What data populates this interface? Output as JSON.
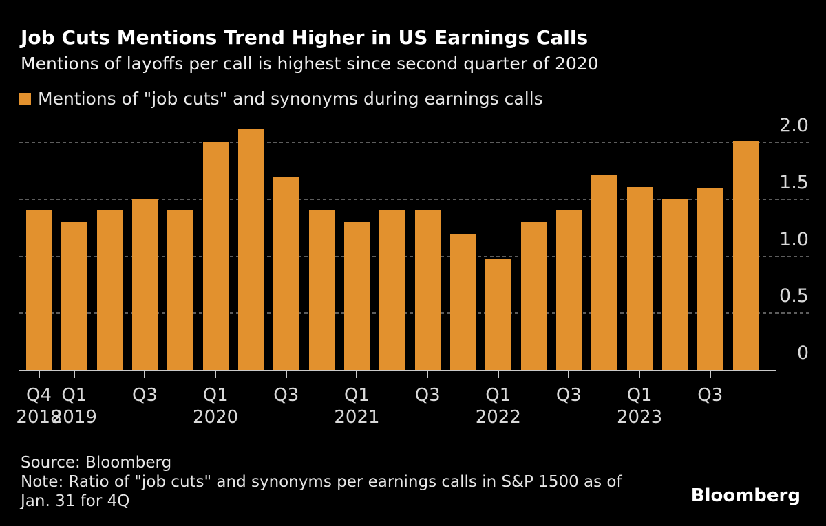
{
  "header": {
    "title": "Job Cuts Mentions Trend Higher in US Earnings Calls",
    "subtitle": "Mentions of layoffs per call is highest since second quarter of 2020"
  },
  "legend": {
    "label": "Mentions of \"job cuts\" and synonyms during earnings calls",
    "swatch_color": "#E2912E"
  },
  "footer": {
    "source": "Source: Bloomberg",
    "note_line1": "Note: Ratio of \"job cuts\" and synonyms per earnings calls in S&P 1500 as of",
    "note_line2": "Jan. 31 for 4Q",
    "brand": "Bloomberg"
  },
  "chart_data": {
    "type": "bar",
    "title": "Job Cuts Mentions Trend Higher in US Earnings Calls",
    "subtitle": "Mentions of layoffs per call is highest since second quarter of 2020",
    "legend_entries": [
      "Mentions of \"job cuts\" and synonyms during earnings calls"
    ],
    "bar_color": "#E2912E",
    "categories": [
      "Q4 2018",
      "Q1 2019",
      "Q2 2019",
      "Q3 2019",
      "Q4 2019",
      "Q1 2020",
      "Q2 2020",
      "Q3 2020",
      "Q4 2020",
      "Q1 2021",
      "Q2 2021",
      "Q3 2021",
      "Q4 2021",
      "Q1 2022",
      "Q2 2022",
      "Q3 2022",
      "Q4 2022",
      "Q1 2023",
      "Q2 2023",
      "Q3 2023",
      "Q4 2023"
    ],
    "values": [
      1.4,
      1.3,
      1.4,
      1.5,
      1.4,
      2.0,
      2.12,
      1.7,
      1.4,
      1.3,
      1.4,
      1.4,
      1.19,
      0.98,
      1.3,
      1.4,
      1.71,
      1.61,
      1.5,
      1.6,
      2.01
    ],
    "ylim": [
      0,
      2.0
    ],
    "y_ticks": [
      {
        "value": 0,
        "label": "0"
      },
      {
        "value": 0.5,
        "label": "0.5"
      },
      {
        "value": 1.0,
        "label": "1.0"
      },
      {
        "value": 1.5,
        "label": "1.5"
      },
      {
        "value": 2.0,
        "label": "2.0"
      }
    ],
    "x_ticks": [
      {
        "index": 0,
        "quarter": "Q4",
        "year": "2018"
      },
      {
        "index": 1,
        "quarter": "Q1",
        "year": "2019"
      },
      {
        "index": 3,
        "quarter": "Q3",
        "year": ""
      },
      {
        "index": 5,
        "quarter": "Q1",
        "year": "2020"
      },
      {
        "index": 7,
        "quarter": "Q3",
        "year": ""
      },
      {
        "index": 9,
        "quarter": "Q1",
        "year": "2021"
      },
      {
        "index": 11,
        "quarter": "Q3",
        "year": ""
      },
      {
        "index": 13,
        "quarter": "Q1",
        "year": "2022"
      },
      {
        "index": 15,
        "quarter": "Q3",
        "year": ""
      },
      {
        "index": 17,
        "quarter": "Q1",
        "year": "2023"
      },
      {
        "index": 19,
        "quarter": "Q3",
        "year": ""
      }
    ],
    "grid": "dashed horizontal at 0.5 intervals",
    "legend_position": "top-left",
    "y_axis_side": "right"
  }
}
